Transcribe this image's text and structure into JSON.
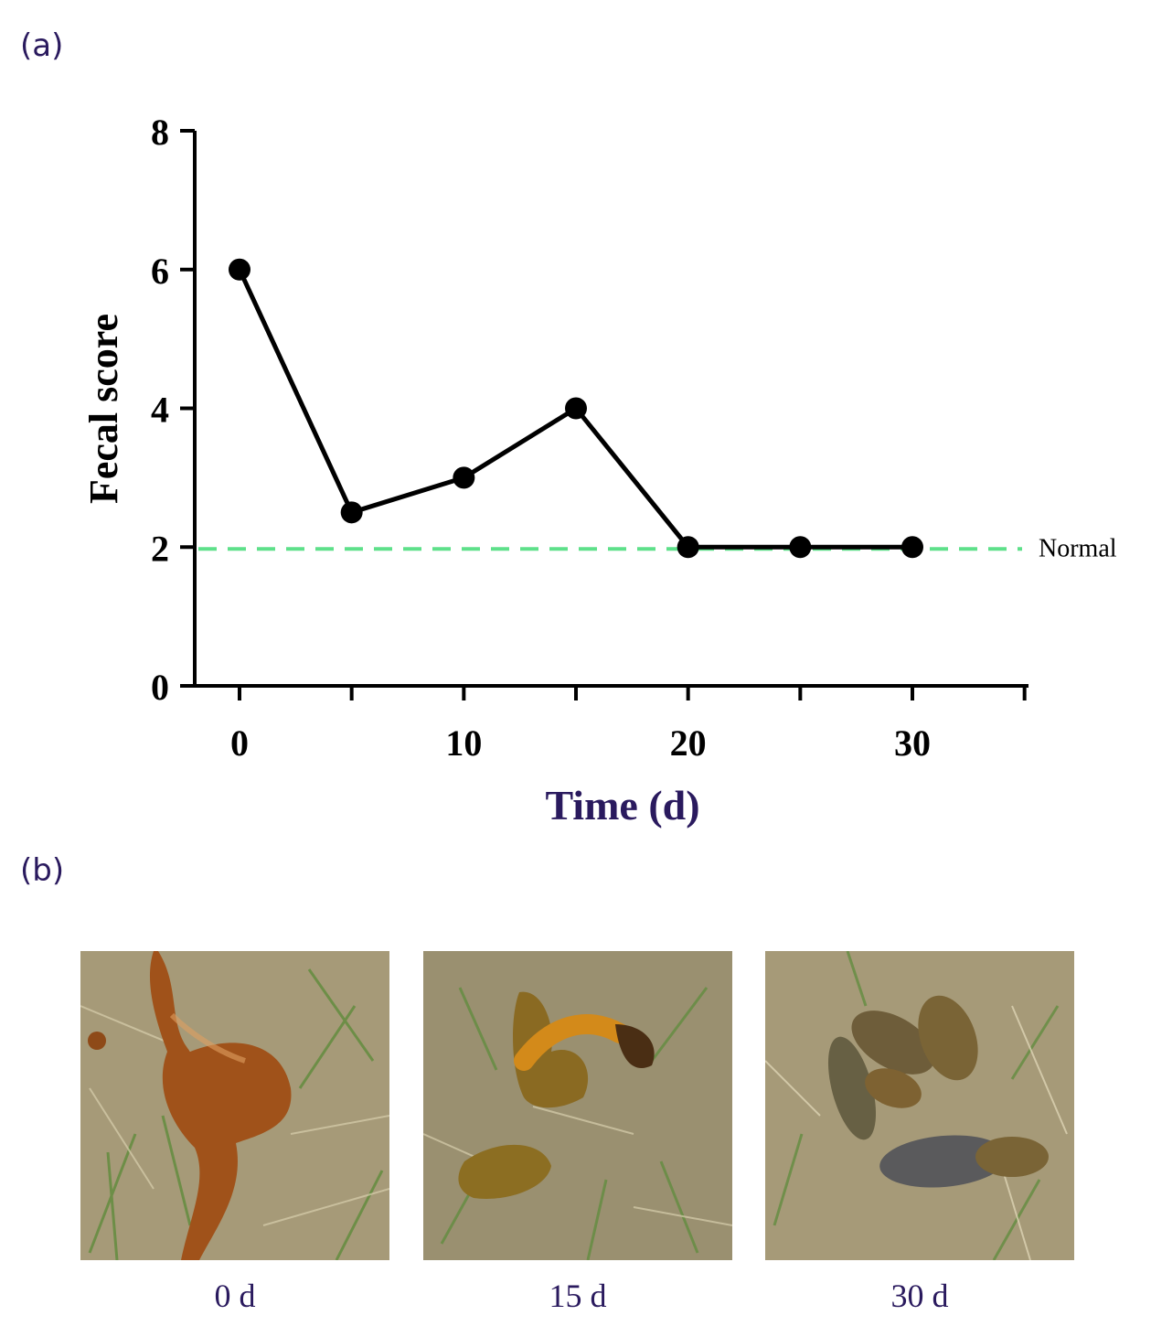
{
  "panel_a_label": "(a)",
  "panel_b_label": "(b)",
  "chart_data": {
    "type": "line",
    "xlabel": "Time (d)",
    "ylabel": "Fecal score",
    "xlim": [
      -2,
      35
    ],
    "ylim": [
      0,
      8
    ],
    "x_ticks_major": [
      0,
      10,
      20,
      30
    ],
    "x_ticks_minor": [
      5,
      15,
      25,
      35
    ],
    "y_ticks": [
      0,
      2,
      4,
      6,
      8
    ],
    "series": [
      {
        "x": [
          0,
          5,
          10,
          15,
          20,
          25,
          30
        ],
        "y": [
          6,
          2.5,
          3,
          4,
          2,
          2,
          2
        ],
        "color": "#000000"
      }
    ],
    "reference_line": {
      "y": 2,
      "label": "Normal",
      "color": "#5ee08a",
      "style": "dashed"
    }
  },
  "photos": [
    {
      "caption": "0 d",
      "sample_color": "#a0521a"
    },
    {
      "caption": "15 d",
      "sample_color": "#b07a1e"
    },
    {
      "caption": "30 d",
      "sample_color": "#6e5d3a"
    }
  ],
  "colors": {
    "label": "#2a1a5e",
    "grass_dry": "#a69a78",
    "grass_green": "#5f8c3c"
  }
}
